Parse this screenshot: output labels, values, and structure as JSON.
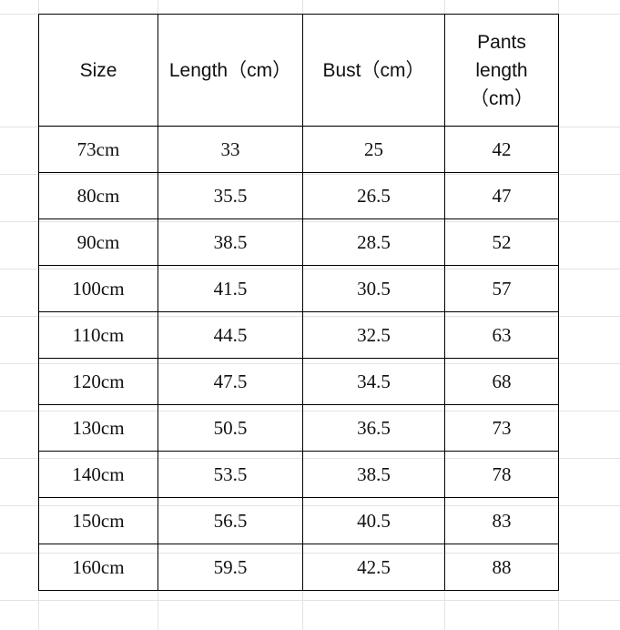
{
  "headers": [
    "Size",
    "Length（cm）",
    "Bust（cm）",
    "Pants length（cm）"
  ],
  "header_pants_lines": [
    "Pants",
    "length",
    "（cm）"
  ],
  "rows": [
    [
      "73cm",
      "33",
      "25",
      "42"
    ],
    [
      "80cm",
      "35.5",
      "26.5",
      "47"
    ],
    [
      "90cm",
      "38.5",
      "28.5",
      "52"
    ],
    [
      "100cm",
      "41.5",
      "30.5",
      "57"
    ],
    [
      "110cm",
      "44.5",
      "32.5",
      "63"
    ],
    [
      "120cm",
      "47.5",
      "34.5",
      "68"
    ],
    [
      "130cm",
      "50.5",
      "36.5",
      "73"
    ],
    [
      "140cm",
      "53.5",
      "38.5",
      "78"
    ],
    [
      "150cm",
      "56.5",
      "40.5",
      "83"
    ],
    [
      "160cm",
      "59.5",
      "42.5",
      "88"
    ]
  ]
}
